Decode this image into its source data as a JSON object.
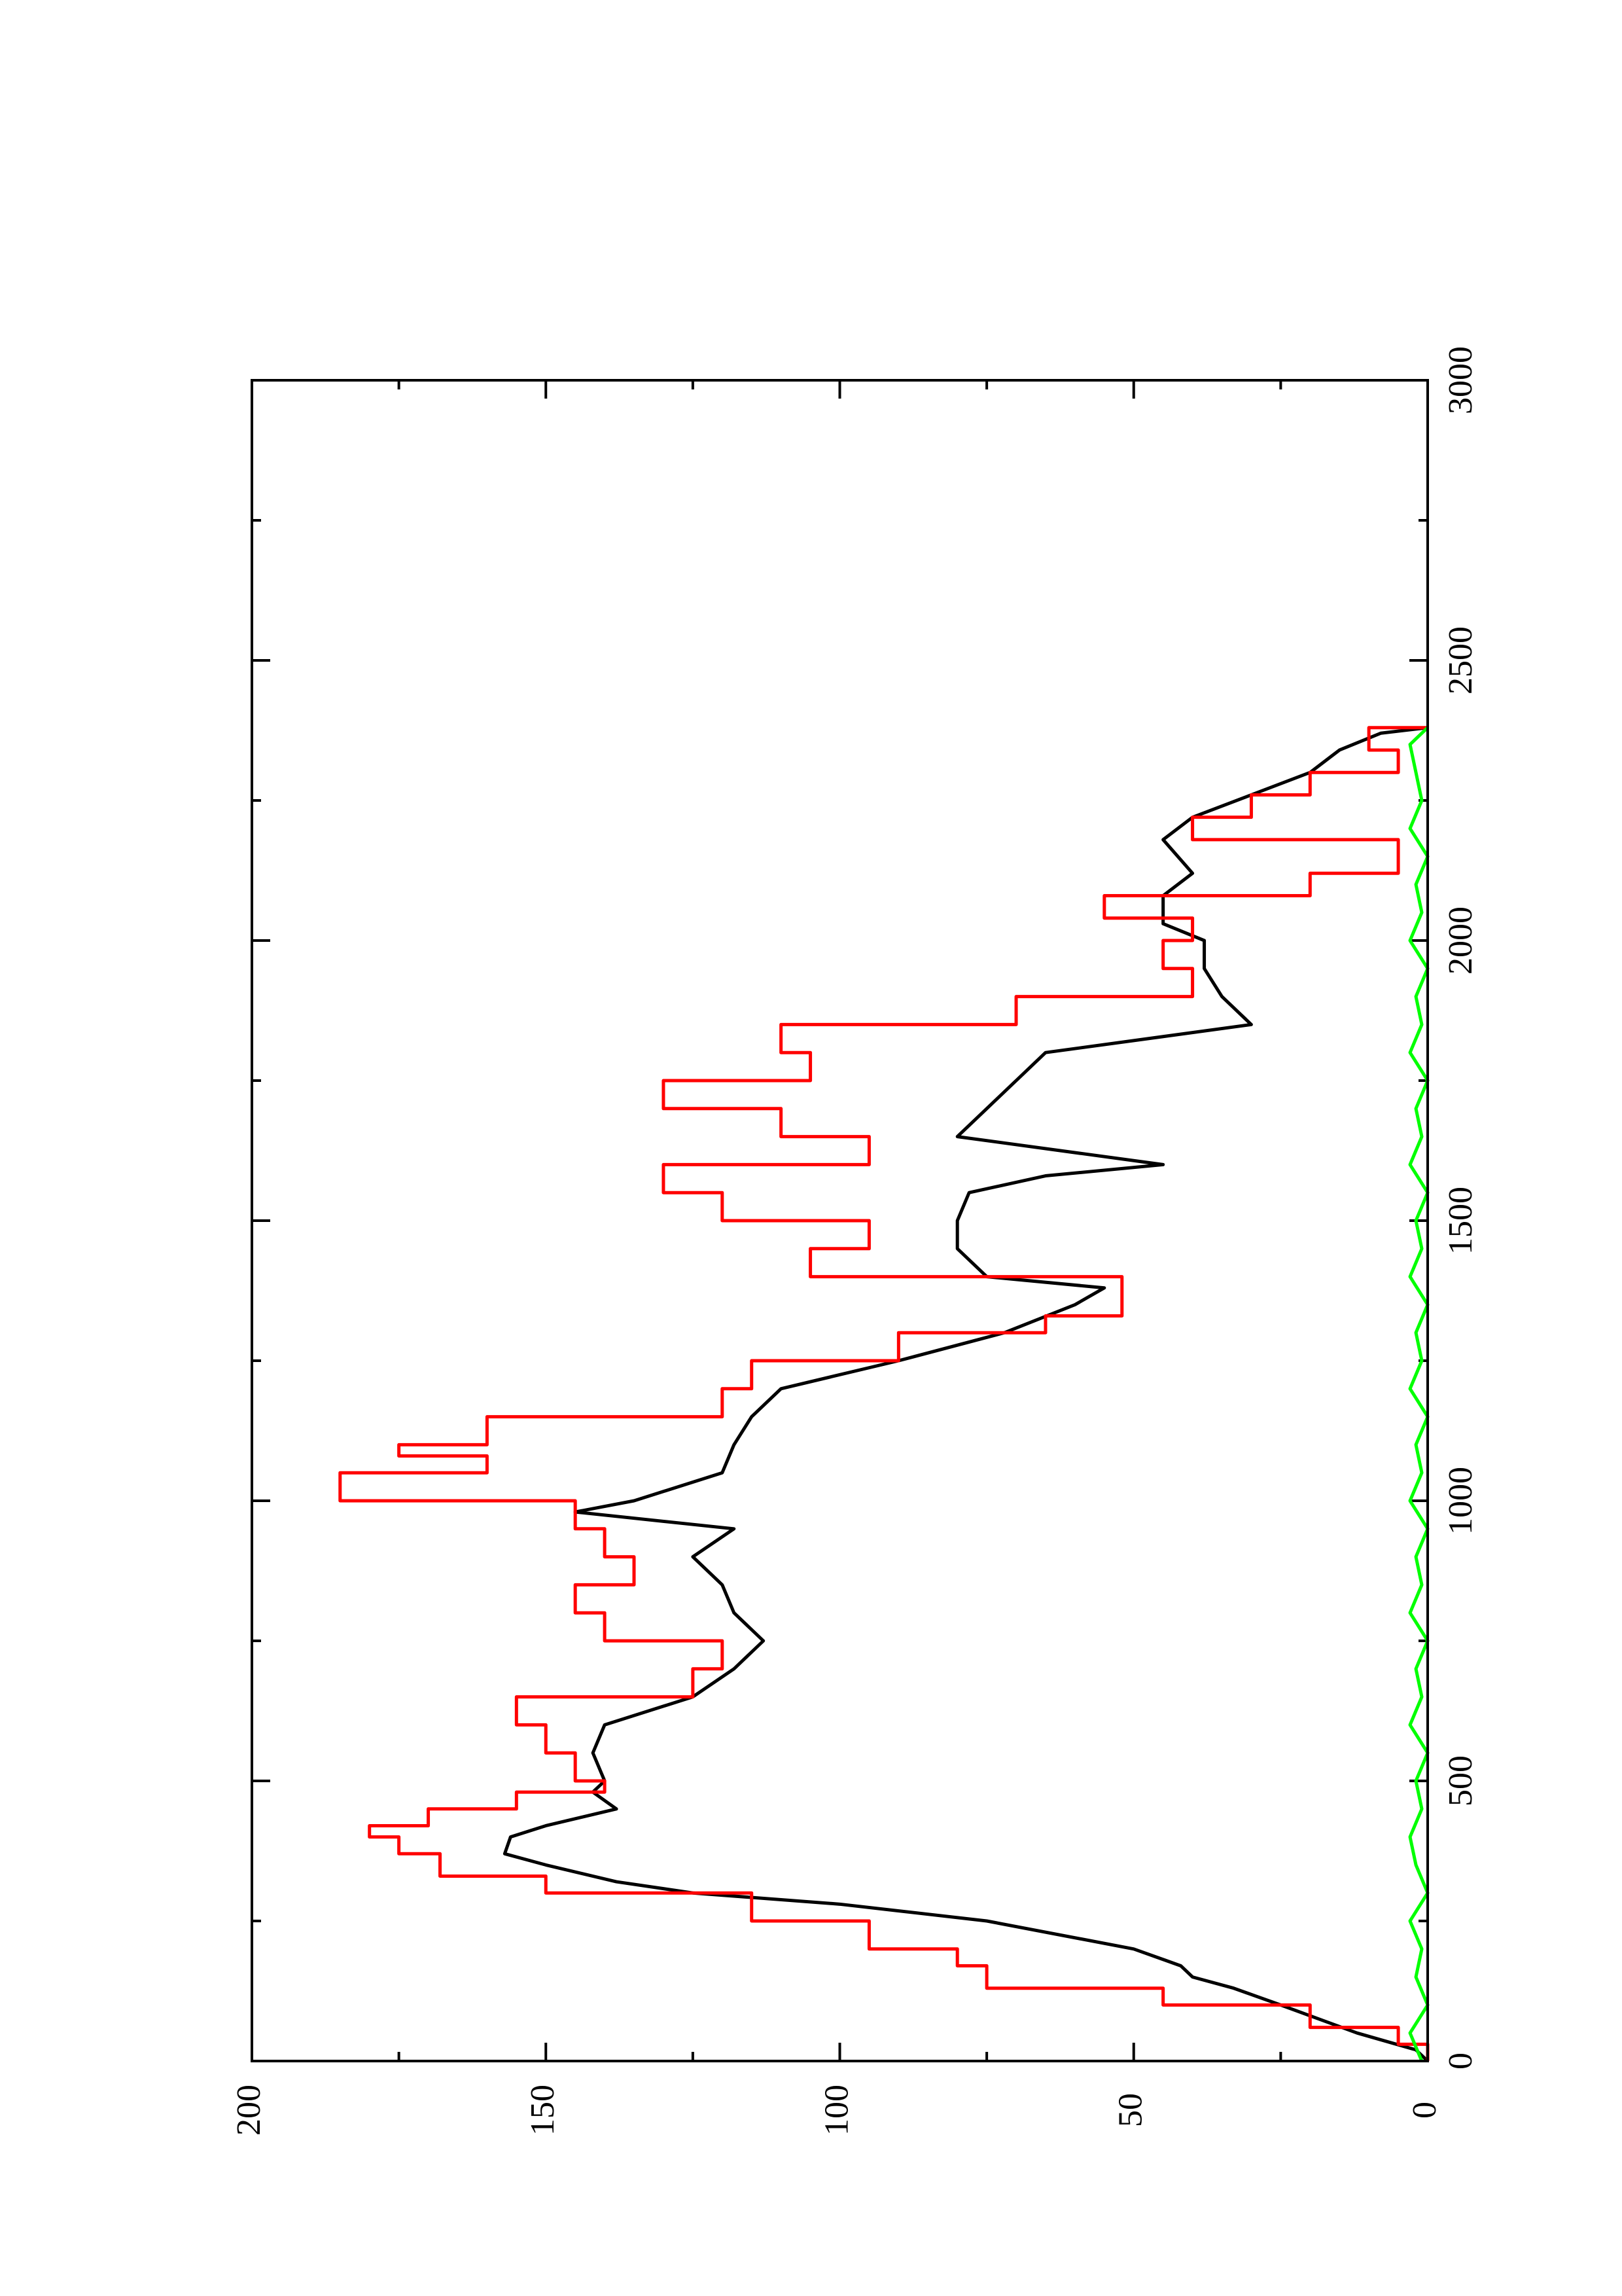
{
  "chart_data": {
    "type": "line",
    "xlim": [
      0,
      3000
    ],
    "xticks": [
      0,
      500,
      1000,
      1500,
      2000,
      2500,
      3000
    ],
    "ylim": [
      0,
      200
    ],
    "yticks": [
      0,
      50,
      100,
      150,
      200
    ],
    "series": [
      {
        "color": "#000000",
        "step": false,
        "x": [
          0,
          20,
          50,
          100,
          130,
          150,
          170,
          200,
          250,
          280,
          300,
          320,
          350,
          370,
          400,
          420,
          450,
          480,
          500,
          550,
          600,
          650,
          700,
          750,
          800,
          850,
          900,
          950,
          980,
          1000,
          1050,
          1100,
          1150,
          1200,
          1250,
          1300,
          1350,
          1380,
          1400,
          1450,
          1500,
          1550,
          1580,
          1600,
          1650,
          1700,
          1750,
          1800,
          1850,
          1900,
          1950,
          2000,
          2030,
          2080,
          2120,
          2180,
          2220,
          2260,
          2300,
          2340,
          2370,
          2380
        ],
        "values": [
          0,
          2,
          12,
          25,
          33,
          40,
          42,
          50,
          75,
          100,
          125,
          138,
          150,
          157,
          156,
          150,
          138,
          142,
          140,
          142,
          140,
          125,
          118,
          113,
          118,
          120,
          125,
          118,
          145,
          135,
          120,
          118,
          115,
          110,
          90,
          72,
          60,
          55,
          75,
          80,
          80,
          78,
          65,
          45,
          80,
          75,
          70,
          65,
          30,
          35,
          38,
          38,
          45,
          45,
          40,
          45,
          40,
          30,
          20,
          15,
          8,
          0
        ]
      },
      {
        "color": "#ff0000",
        "step": true,
        "x": [
          0,
          30,
          60,
          100,
          130,
          170,
          200,
          250,
          300,
          330,
          370,
          400,
          420,
          450,
          480,
          500,
          550,
          600,
          650,
          700,
          750,
          800,
          850,
          900,
          950,
          1000,
          1050,
          1080,
          1100,
          1150,
          1200,
          1250,
          1300,
          1330,
          1400,
          1450,
          1500,
          1550,
          1600,
          1650,
          1700,
          1750,
          1800,
          1850,
          1900,
          1950,
          2000,
          2040,
          2080,
          2120,
          2180,
          2220,
          2260,
          2300,
          2340,
          2380
        ],
        "values": [
          0,
          5,
          20,
          45,
          75,
          80,
          95,
          115,
          150,
          168,
          175,
          180,
          170,
          155,
          140,
          145,
          150,
          155,
          125,
          120,
          140,
          145,
          135,
          140,
          145,
          185,
          160,
          175,
          160,
          120,
          115,
          90,
          65,
          52,
          105,
          95,
          120,
          130,
          95,
          110,
          130,
          105,
          110,
          70,
          40,
          45,
          40,
          55,
          20,
          5,
          40,
          30,
          20,
          5,
          10,
          0
        ]
      },
      {
        "color": "#00ff00",
        "step": false,
        "x": [
          0,
          50,
          100,
          150,
          200,
          250,
          300,
          350,
          400,
          450,
          500,
          550,
          600,
          650,
          700,
          750,
          800,
          850,
          900,
          950,
          1000,
          1050,
          1100,
          1150,
          1200,
          1250,
          1300,
          1350,
          1400,
          1450,
          1500,
          1550,
          1600,
          1650,
          1700,
          1750,
          1800,
          1850,
          1900,
          1950,
          2000,
          2050,
          2100,
          2150,
          2200,
          2250,
          2300,
          2350,
          2380
        ],
        "values": [
          1,
          3,
          0,
          2,
          1,
          3,
          0,
          2,
          3,
          1,
          2,
          0,
          3,
          1,
          2,
          0,
          3,
          1,
          2,
          0,
          3,
          1,
          2,
          0,
          3,
          1,
          2,
          0,
          3,
          1,
          2,
          0,
          3,
          1,
          2,
          0,
          3,
          1,
          2,
          0,
          3,
          1,
          2,
          0,
          3,
          1,
          2,
          3,
          0
        ]
      }
    ]
  }
}
